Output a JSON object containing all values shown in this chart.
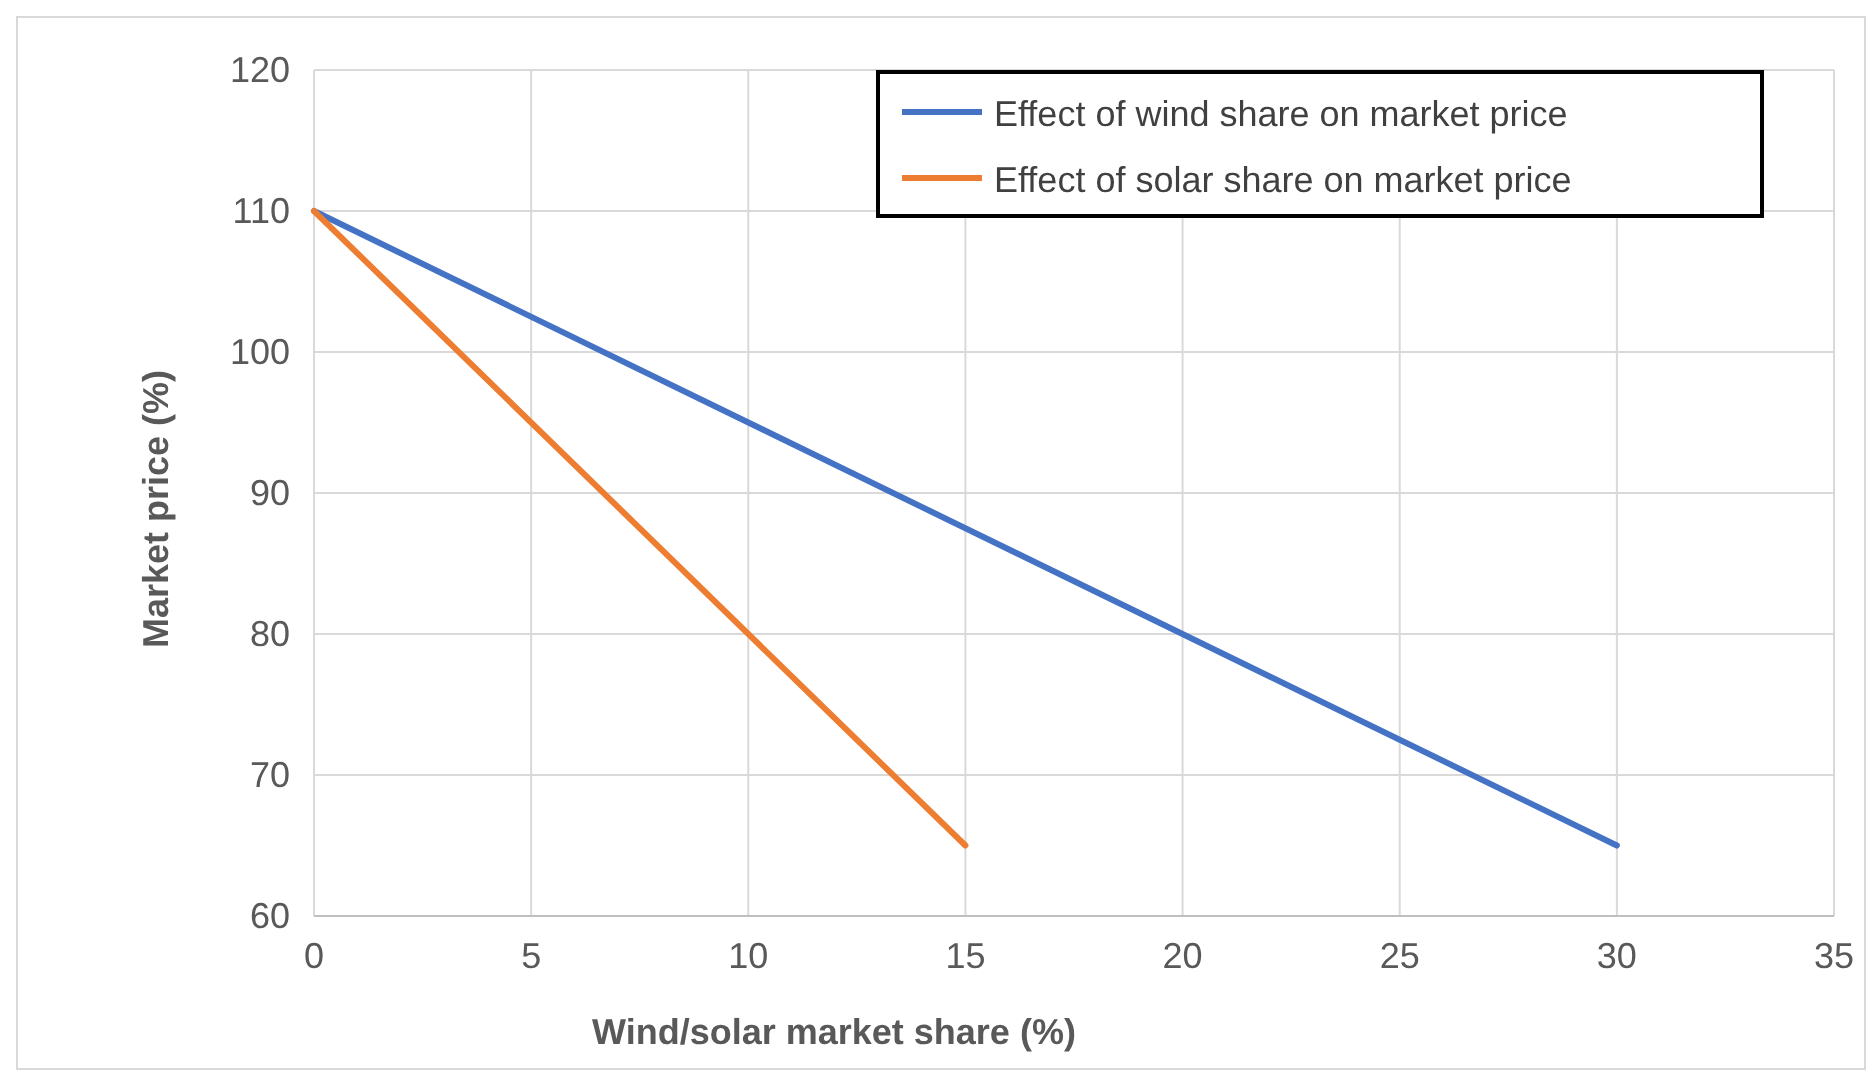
{
  "chart_data": {
    "type": "line",
    "xlabel": "Wind/solar market share (%)",
    "ylabel": "Market price (%)",
    "xlim": [
      0,
      35
    ],
    "xticks": [
      0,
      5,
      10,
      15,
      20,
      25,
      30,
      35
    ],
    "ylim": [
      60,
      120
    ],
    "yticks": [
      60,
      70,
      80,
      90,
      100,
      110,
      120
    ],
    "grid": true,
    "legend": "top right",
    "marker": "none",
    "line_style": "solid",
    "series": [
      {
        "name": "Effect of wind share on market price",
        "color": "#4472c4",
        "x": [
          0,
          30
        ],
        "values": [
          110,
          65
        ]
      },
      {
        "name": "Effect of solar share on market price",
        "color": "#ed7d31",
        "x": [
          0,
          15
        ],
        "values": [
          110,
          65
        ]
      }
    ]
  }
}
